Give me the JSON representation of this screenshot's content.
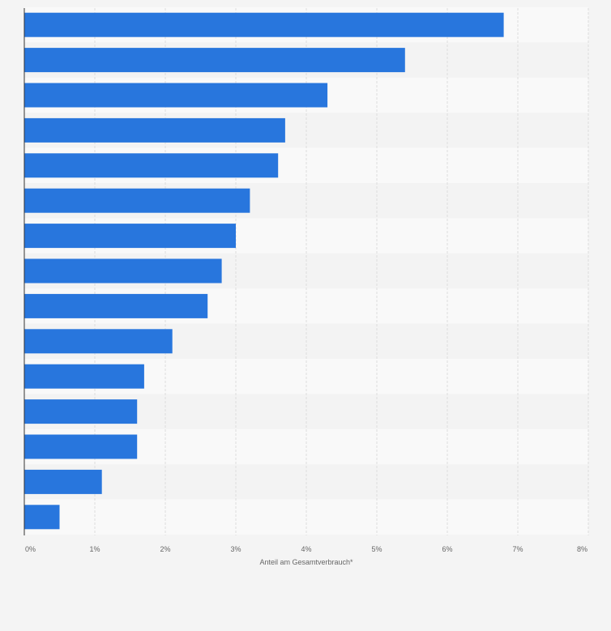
{
  "colors": {
    "background": "#f4f4f4",
    "band_light": "#f9f9f9",
    "band_dark": "#f3f3f3",
    "bar": "#2876dd",
    "grid": "#dddddd",
    "axis": "#333333",
    "text": "#666666"
  },
  "chart_data": {
    "type": "bar",
    "orientation": "horizontal",
    "title": "",
    "xlabel": "Anteil am Gesamtverbrauch*",
    "ylabel": "",
    "xlim": [
      0,
      8
    ],
    "x_ticks": [
      "0%",
      "1%",
      "2%",
      "3%",
      "4%",
      "5%",
      "6%",
      "7%",
      "8%"
    ],
    "grid": true,
    "categories": [
      "",
      "",
      "",
      "",
      "",
      "",
      "",
      "",
      "",
      "",
      "",
      "",
      "",
      "",
      ""
    ],
    "values": [
      6.8,
      5.4,
      4.3,
      3.7,
      3.6,
      3.2,
      3.0,
      2.8,
      2.6,
      2.1,
      1.7,
      1.6,
      1.6,
      1.1,
      0.5
    ],
    "unit": "%"
  }
}
